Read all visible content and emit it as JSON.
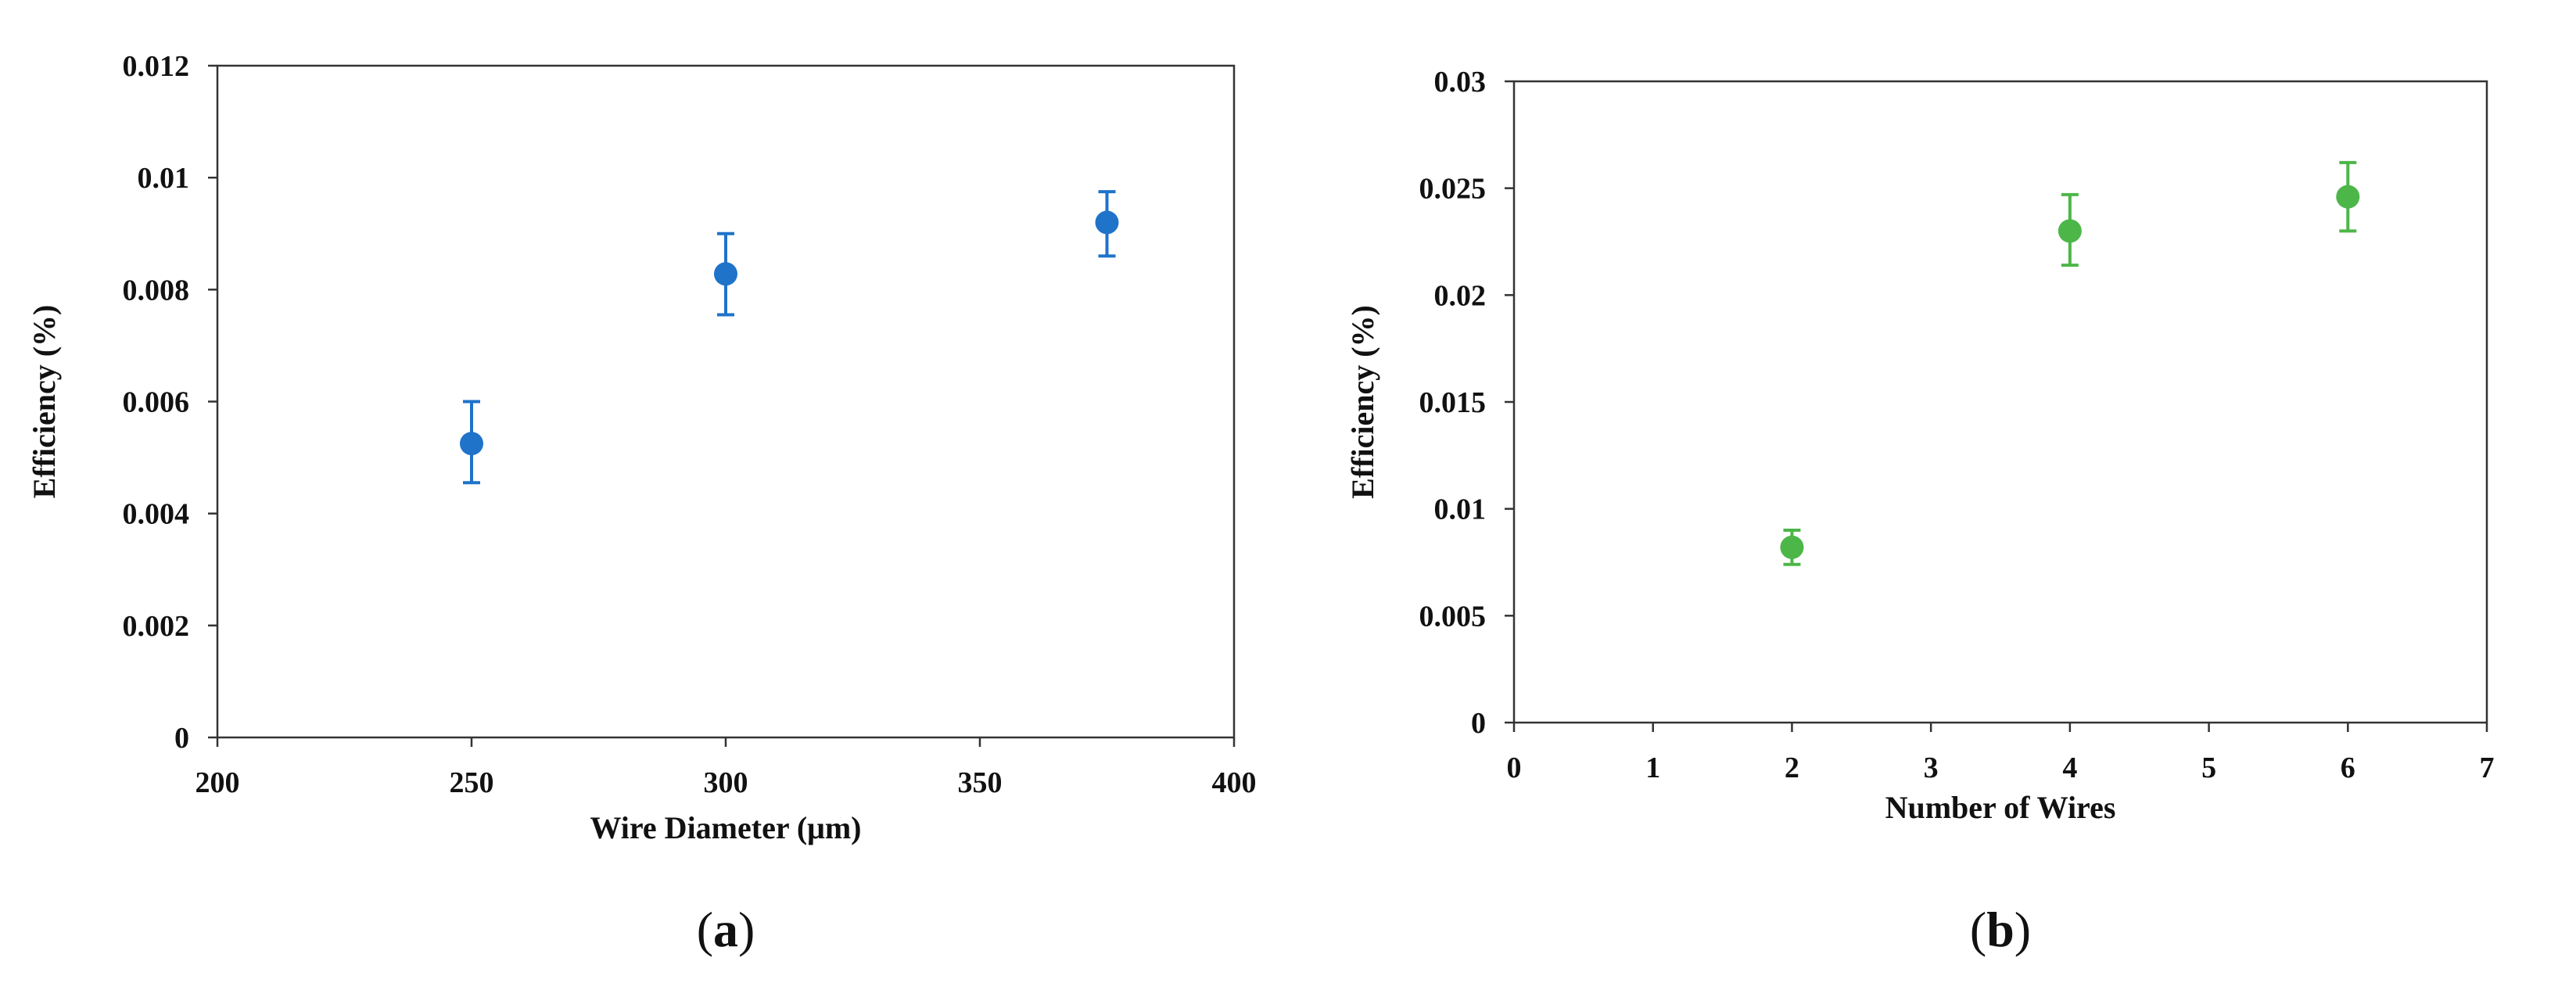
{
  "chart_data": [
    {
      "type": "scatter",
      "caption_letter": "a",
      "xlabel": "Wire Diameter (μm)",
      "ylabel": "Efficiency (%)",
      "xlim": [
        200,
        400
      ],
      "ylim": [
        0,
        0.012
      ],
      "xticks": [
        200,
        250,
        300,
        350,
        400
      ],
      "yticks": [
        0,
        0.002,
        0.004,
        0.006,
        0.008,
        0.01,
        0.012
      ],
      "xtick_labels": [
        "200",
        "250",
        "300",
        "350",
        "400"
      ],
      "ytick_labels": [
        "0",
        "0.002",
        "0.004",
        "0.006",
        "0.008",
        "0.01",
        "0.012"
      ],
      "grid": false,
      "color": "#1f73c9",
      "series": [
        {
          "x": [
            250,
            300,
            375
          ],
          "y": [
            0.00525,
            0.00828,
            0.0092
          ],
          "err_low": [
            0.00455,
            0.00755,
            0.0086
          ],
          "err_high": [
            0.006,
            0.009,
            0.00975
          ]
        }
      ]
    },
    {
      "type": "scatter",
      "caption_letter": "b",
      "xlabel": "Number of Wires",
      "ylabel": "Efficiency (%)",
      "xlim": [
        0,
        7
      ],
      "ylim": [
        0,
        0.03
      ],
      "xticks": [
        0,
        1,
        2,
        3,
        4,
        5,
        6,
        7
      ],
      "yticks": [
        0,
        0.005,
        0.01,
        0.015,
        0.02,
        0.025,
        0.03
      ],
      "xtick_labels": [
        "0",
        "1",
        "2",
        "3",
        "4",
        "5",
        "6",
        "7"
      ],
      "ytick_labels": [
        "0",
        "0.005",
        "0.01",
        "0.015",
        "0.02",
        "0.025",
        "0.03"
      ],
      "grid": false,
      "color": "#4cb648",
      "series": [
        {
          "x": [
            2,
            4,
            6
          ],
          "y": [
            0.0082,
            0.023,
            0.0246
          ],
          "err_low": [
            0.0074,
            0.0214,
            0.023
          ],
          "err_high": [
            0.009,
            0.0247,
            0.0262
          ]
        }
      ]
    }
  ]
}
